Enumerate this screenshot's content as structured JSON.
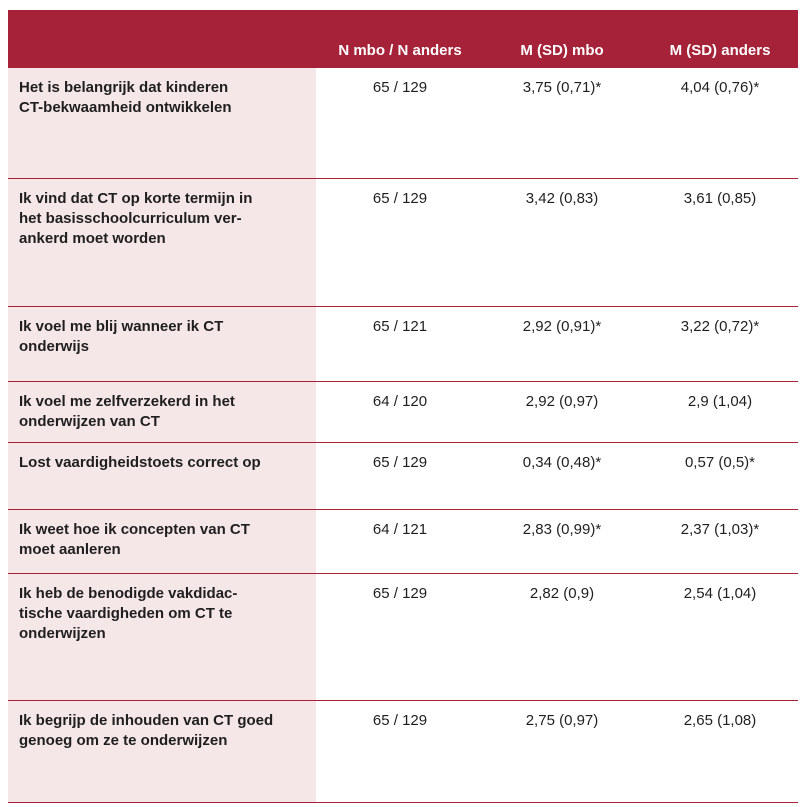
{
  "header": {
    "col_n": "N mbo / N anders",
    "col_mbo": "M (SD) mbo",
    "col_anders": "M (SD) anders"
  },
  "rows": [
    {
      "label": "Het is belangrijk dat kinderen\nCT-bekwaamheid ontwikkelen",
      "n": "65 / 129",
      "mbo": "3,75 (0,71)*",
      "anders": "4,04 (0,76)*"
    },
    {
      "label": "Ik vind dat CT op korte termijn in\nhet basisschoolcurriculum ver-\nankerd moet worden",
      "n": "65 / 129",
      "mbo": "3,42 (0,83)",
      "anders": "3,61 (0,85)"
    },
    {
      "label": "Ik voel me blij wanneer ik CT\nonderwijs",
      "n": "65 / 121",
      "mbo": "2,92 (0,91)*",
      "anders": "3,22 (0,72)*"
    },
    {
      "label": "Ik voel me zelfverzekerd in het\nonderwijzen van CT",
      "n": "64 / 120",
      "mbo": "2,92 (0,97)",
      "anders": "2,9 (1,04)"
    },
    {
      "label": "Lost vaardigheidstoets correct op",
      "n": "65 / 129",
      "mbo": "0,34 (0,48)*",
      "anders": "0,57 (0,5)*"
    },
    {
      "label": "Ik weet hoe ik concepten van CT\nmoet aanleren",
      "n": "64 / 121",
      "mbo": "2,83 (0,99)*",
      "anders": "2,37 (1,03)*"
    },
    {
      "label": "Ik heb de benodigde vakdidac-\ntische vaardigheden om CT te\nonderwijzen",
      "n": "65 / 129",
      "mbo": "2,82 (0,9)",
      "anders": "2,54 (1,04)"
    },
    {
      "label": "Ik begrijp de inhouden van CT goed\ngenoeg om ze te onderwijzen",
      "n": "65 / 129",
      "mbo": "2,75 (0,97)",
      "anders": "2,65 (1,08)"
    }
  ]
}
